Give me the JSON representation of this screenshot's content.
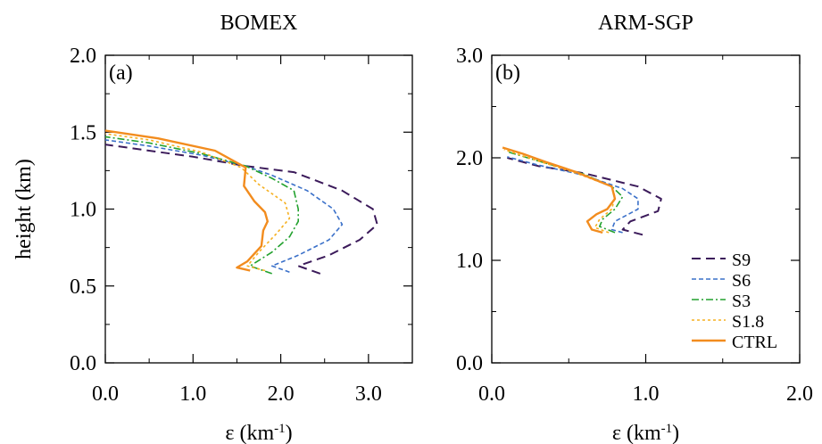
{
  "chart_data": [
    {
      "type": "line",
      "panel_label": "(a)",
      "title": "BOMEX",
      "xlabel": "ε (km",
      "xlabel_sup": "-1",
      "xlabel_tail": ")",
      "ylabel": "height (km)",
      "xlim": [
        0,
        3.5
      ],
      "ylim": [
        0,
        2.0
      ],
      "xticks": [
        0,
        1,
        2,
        3
      ],
      "xtick_labels": [
        "0.0",
        "1.0",
        "2.0",
        "3.0"
      ],
      "xminor": [
        0.5,
        1.5,
        2.5
      ],
      "yticks": [
        0,
        0.5,
        1.0,
        1.5,
        2.0
      ],
      "ytick_labels": [
        "0.0",
        "0.5",
        "1.0",
        "1.5",
        "2.0"
      ],
      "yminor": [
        0.25,
        0.75,
        1.25,
        1.75
      ],
      "series": [
        {
          "name": "S9",
          "color": "#3b1a5a",
          "dash": "10,6",
          "width": 2,
          "x": [
            2.45,
            2.2,
            2.55,
            2.9,
            3.1,
            3.05,
            2.7,
            2.15,
            1.6,
            1.0,
            0.5,
            0.0
          ],
          "y": [
            0.58,
            0.63,
            0.7,
            0.8,
            0.9,
            1.0,
            1.12,
            1.24,
            1.28,
            1.34,
            1.38,
            1.42
          ]
        },
        {
          "name": "S6",
          "color": "#3a70c9",
          "dash": "5,3",
          "width": 1.6,
          "x": [
            2.1,
            1.9,
            2.2,
            2.55,
            2.7,
            2.6,
            2.3,
            1.9,
            1.6,
            1.1,
            0.5,
            0.0
          ],
          "y": [
            0.59,
            0.63,
            0.7,
            0.8,
            0.9,
            1.0,
            1.12,
            1.22,
            1.28,
            1.35,
            1.41,
            1.45
          ]
        },
        {
          "name": "S3",
          "color": "#22a12e",
          "dash": "8,3,2,3",
          "width": 1.6,
          "x": [
            1.9,
            1.65,
            1.9,
            2.1,
            2.2,
            2.2,
            2.15,
            1.9,
            1.6,
            1.1,
            0.5,
            0.0
          ],
          "y": [
            0.58,
            0.63,
            0.72,
            0.82,
            0.92,
            1.0,
            1.12,
            1.2,
            1.28,
            1.36,
            1.43,
            1.47
          ]
        },
        {
          "name": "S1.8",
          "color": "#f5b021",
          "dash": "3,3",
          "width": 1.6,
          "x": [
            1.82,
            1.62,
            1.75,
            1.95,
            2.1,
            2.05,
            1.75,
            1.55,
            1.1,
            0.5,
            0.0
          ],
          "y": [
            0.6,
            0.63,
            0.72,
            0.84,
            0.94,
            1.04,
            1.16,
            1.27,
            1.37,
            1.45,
            1.49
          ]
        },
        {
          "name": "CTRL",
          "color": "#f28c1e",
          "dash": "",
          "width": 2.4,
          "x": [
            1.65,
            1.5,
            1.62,
            1.78,
            1.8,
            1.85,
            1.82,
            1.7,
            1.58,
            1.6,
            1.25,
            0.6,
            0.0
          ],
          "y": [
            0.6,
            0.62,
            0.66,
            0.76,
            0.86,
            0.92,
            0.98,
            1.05,
            1.15,
            1.27,
            1.38,
            1.46,
            1.51
          ]
        }
      ]
    },
    {
      "type": "line",
      "panel_label": "(b)",
      "title": "ARM-SGP",
      "xlabel": "ε (km",
      "xlabel_sup": "-1",
      "xlabel_tail": ")",
      "xlim": [
        0,
        2.0
      ],
      "ylim": [
        0,
        3.0
      ],
      "xticks": [
        0,
        1,
        2
      ],
      "xtick_labels": [
        "0.0",
        "1.0",
        "2.0"
      ],
      "xminor": [
        0.5,
        1.5
      ],
      "yticks": [
        0,
        1.0,
        2.0,
        3.0
      ],
      "ytick_labels": [
        "0.0",
        "1.0",
        "2.0",
        "3.0"
      ],
      "yminor": [
        0.5,
        1.5,
        2.5
      ],
      "legend_position": "bottom-right",
      "series": [
        {
          "name": "S9",
          "color": "#3b1a5a",
          "dash": "10,6",
          "width": 2,
          "x": [
            0.98,
            0.85,
            0.9,
            1.08,
            1.1,
            0.95,
            0.6,
            0.3,
            0.1
          ],
          "y": [
            1.25,
            1.3,
            1.38,
            1.48,
            1.6,
            1.72,
            1.85,
            1.92,
            2.0
          ]
        },
        {
          "name": "S6",
          "color": "#3a70c9",
          "dash": "5,3",
          "width": 1.6,
          "x": [
            0.85,
            0.78,
            0.8,
            0.95,
            0.95,
            0.85,
            0.6,
            0.3,
            0.1
          ],
          "y": [
            1.27,
            1.3,
            1.38,
            1.5,
            1.6,
            1.7,
            1.83,
            1.93,
            2.01
          ]
        },
        {
          "name": "S3",
          "color": "#22a12e",
          "dash": "8,3,2,3",
          "width": 1.6,
          "x": [
            0.8,
            0.7,
            0.72,
            0.8,
            0.85,
            0.78,
            0.6,
            0.3,
            0.1
          ],
          "y": [
            1.27,
            1.33,
            1.4,
            1.5,
            1.62,
            1.72,
            1.84,
            1.97,
            2.06
          ]
        },
        {
          "name": "S1.8",
          "color": "#f5b021",
          "dash": "3,3",
          "width": 1.6,
          "x": [
            0.76,
            0.67,
            0.7,
            0.78,
            0.8,
            0.78,
            0.55,
            0.3,
            0.08
          ],
          "y": [
            1.27,
            1.32,
            1.4,
            1.5,
            1.62,
            1.72,
            1.85,
            1.97,
            2.08
          ]
        },
        {
          "name": "CTRL",
          "color": "#f28c1e",
          "dash": "",
          "width": 2.4,
          "x": [
            0.72,
            0.65,
            0.62,
            0.68,
            0.75,
            0.8,
            0.78,
            0.55,
            0.35,
            0.2,
            0.07
          ],
          "y": [
            1.27,
            1.3,
            1.38,
            1.45,
            1.5,
            1.6,
            1.72,
            1.86,
            1.96,
            2.04,
            2.1
          ]
        }
      ]
    }
  ]
}
